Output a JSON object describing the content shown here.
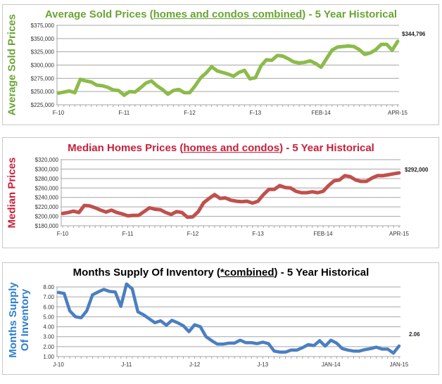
{
  "chart_data": [
    {
      "type": "line",
      "title": {
        "prefix": "Average Sold Prices (",
        "underlined": "homes and condos combined",
        "suffix": ") - 5 Year Historical"
      },
      "ylabel": "Average Sold Prices",
      "xlabel": "",
      "ylim": [
        225000,
        375000
      ],
      "yticks": [
        "$225,000",
        "$250,000",
        "$275,000",
        "$300,000",
        "$325,000",
        "$350,000",
        "$375,000"
      ],
      "xtick_labels": [
        {
          "i": 0,
          "label": "F-10"
        },
        {
          "i": 12,
          "label": "F-11"
        },
        {
          "i": 24,
          "label": "F-12"
        },
        {
          "i": 36,
          "label": "F-13"
        },
        {
          "i": 48,
          "label": "FEB-14"
        },
        {
          "i": 62,
          "label": "APR-15"
        }
      ],
      "grid": true,
      "end_label": "$344,796",
      "color": "#8cbb4a",
      "title_color": "#6aa434",
      "values": [
        247000,
        249000,
        251000,
        248000,
        273000,
        270000,
        268000,
        262000,
        261000,
        258000,
        253000,
        252000,
        243000,
        250000,
        249000,
        257000,
        266000,
        270000,
        261000,
        254000,
        245000,
        252000,
        254000,
        248000,
        248000,
        261000,
        276000,
        285000,
        297000,
        289000,
        286000,
        283000,
        279000,
        286000,
        290000,
        274000,
        276000,
        298000,
        310000,
        309000,
        318000,
        317000,
        312000,
        306000,
        304000,
        305000,
        308000,
        303000,
        296000,
        312000,
        328000,
        334000,
        335000,
        336000,
        335000,
        329000,
        320000,
        323000,
        329000,
        339000,
        339000,
        328000,
        344796
      ]
    },
    {
      "type": "line",
      "title": {
        "prefix": "Median Homes Prices (",
        "underlined": "homes and condos",
        "suffix": ") - 5 Year Historical"
      },
      "ylabel": "Median Prices",
      "xlabel": "",
      "ylim": [
        180000,
        320000
      ],
      "yticks": [
        "$180,000",
        "$200,000",
        "$220,000",
        "$240,000",
        "$260,000",
        "$280,000",
        "$300,000",
        "$320,000"
      ],
      "xtick_labels": [
        {
          "i": 0,
          "label": "F-10"
        },
        {
          "i": 12,
          "label": "F-11"
        },
        {
          "i": 24,
          "label": "F-12"
        },
        {
          "i": 36,
          "label": "F-13"
        },
        {
          "i": 48,
          "label": "FEB-14"
        },
        {
          "i": 62,
          "label": "APR-15"
        }
      ],
      "grid": true,
      "end_label": "$292,000",
      "color": "#c0504d",
      "title_color": "#c8203a",
      "values": [
        206000,
        208000,
        211000,
        208000,
        223000,
        222000,
        218000,
        213000,
        209000,
        213000,
        208000,
        205000,
        201000,
        202000,
        202000,
        210000,
        218000,
        215000,
        214000,
        208000,
        204000,
        210000,
        208000,
        198000,
        199000,
        210000,
        229000,
        238000,
        246000,
        238000,
        239000,
        234000,
        232000,
        231000,
        232000,
        228000,
        232000,
        246000,
        257000,
        257000,
        265000,
        261000,
        260000,
        253000,
        250000,
        250000,
        252000,
        250000,
        253000,
        265000,
        275000,
        277000,
        286000,
        284000,
        277000,
        274000,
        274000,
        281000,
        286000,
        286000,
        288000,
        290000,
        292000
      ]
    },
    {
      "type": "line",
      "title": {
        "prefix": "Months Supply Of Inventory (",
        "underlined": "*combined",
        "suffix": ") - 5 Year Historical"
      },
      "ylabel": "Months Supply Of Inventory",
      "xlabel": "",
      "ylim": [
        1.0,
        8.0
      ],
      "yticks": [
        "1.00",
        "2.00",
        "3.00",
        "4.00",
        "5.00",
        "6.00",
        "7.00",
        "8.00"
      ],
      "xtick_labels": [
        {
          "i": 0,
          "label": "J-10"
        },
        {
          "i": 12,
          "label": "J-11"
        },
        {
          "i": 24,
          "label": "J-12"
        },
        {
          "i": 36,
          "label": "J-13"
        },
        {
          "i": 48,
          "label": "JAN-14"
        },
        {
          "i": 60,
          "label": "JAN-15"
        }
      ],
      "grid": true,
      "end_label": "2.06",
      "color": "#4a7fc1",
      "title_color": "#000000",
      "ylabel_color": "#2f7fd0",
      "values": [
        7.45,
        7.35,
        5.6,
        5.0,
        4.9,
        5.6,
        7.2,
        7.5,
        7.75,
        7.55,
        7.5,
        6.05,
        8.3,
        7.8,
        5.5,
        5.2,
        4.8,
        4.4,
        4.6,
        4.15,
        4.65,
        4.4,
        4.1,
        3.5,
        4.2,
        4.0,
        3.0,
        2.6,
        2.25,
        2.25,
        2.35,
        2.35,
        2.65,
        2.4,
        2.4,
        2.3,
        2.45,
        2.3,
        1.55,
        1.45,
        1.45,
        1.65,
        1.65,
        1.9,
        2.2,
        2.1,
        2.6,
        2.05,
        2.65,
        2.35,
        1.8,
        1.65,
        1.55,
        1.55,
        1.7,
        1.8,
        1.95,
        1.75,
        1.75,
        1.35,
        2.06
      ]
    }
  ]
}
